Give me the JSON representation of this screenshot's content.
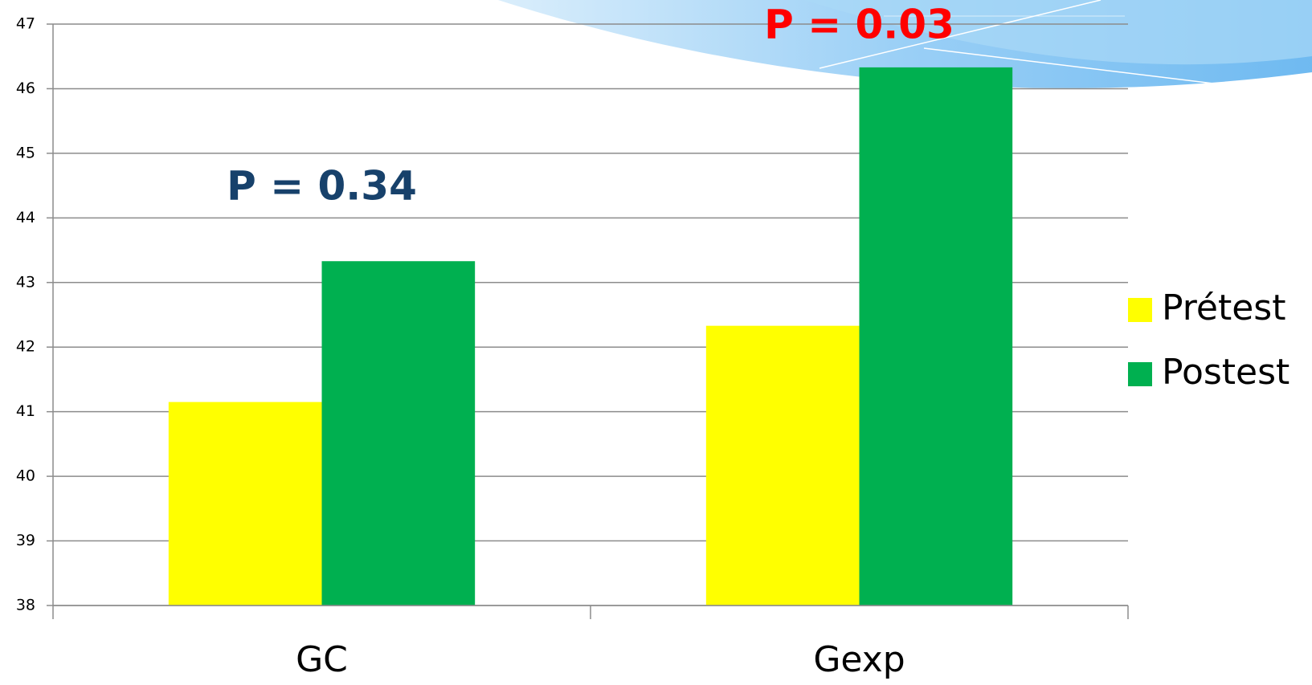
{
  "chart_data": {
    "type": "bar",
    "categories": [
      "GC",
      "Gexp"
    ],
    "series": [
      {
        "name": "Prétest",
        "color": "#ffff00",
        "values": [
          41.15,
          42.33
        ]
      },
      {
        "name": "Postest",
        "color": "#00b050",
        "values": [
          43.33,
          46.33
        ]
      }
    ],
    "ylim": [
      38,
      47
    ],
    "yticks": [
      38,
      39,
      40,
      41,
      42,
      43,
      44,
      45,
      46,
      47
    ],
    "grid": true,
    "legend": "right",
    "annotations": [
      {
        "text": "P = 0.34",
        "color": "#17416b"
      },
      {
        "text": "P = 0.03",
        "color": "#ff0000"
      }
    ]
  }
}
